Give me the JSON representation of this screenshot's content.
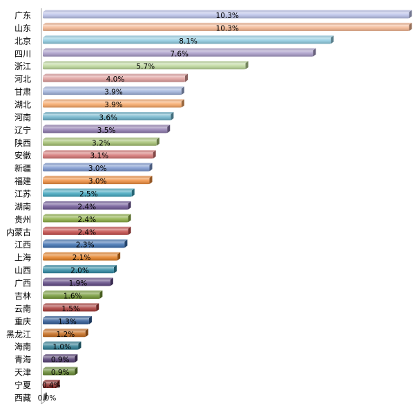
{
  "chart_data": {
    "type": "bar",
    "orientation": "horizontal",
    "style": "3d-cylinder",
    "categories": [
      "广东",
      "山东",
      "北京",
      "四川",
      "浙江",
      "河北",
      "甘肃",
      "湖北",
      "河南",
      "辽宁",
      "陕西",
      "安徽",
      "新疆",
      "福建",
      "江苏",
      "湖南",
      "贵州",
      "内蒙古",
      "江西",
      "上海",
      "山西",
      "广西",
      "吉林",
      "云南",
      "重庆",
      "黑龙江",
      "海南",
      "青海",
      "天津",
      "宁夏",
      "西藏"
    ],
    "values": [
      10.3,
      10.3,
      8.1,
      7.6,
      5.7,
      4.0,
      3.9,
      3.9,
      3.6,
      3.5,
      3.2,
      3.1,
      3.0,
      3.0,
      2.5,
      2.4,
      2.4,
      2.4,
      2.3,
      2.1,
      2.0,
      1.9,
      1.6,
      1.5,
      1.3,
      1.2,
      1.0,
      0.9,
      0.9,
      0.4,
      0.0
    ],
    "value_labels": [
      "10.3%",
      "10.3%",
      "8.1%",
      "7.6%",
      "5.7%",
      "4.0%",
      "3.9%",
      "3.9%",
      "3.6%",
      "3.5%",
      "3.2%",
      "3.1%",
      "3.0%",
      "3.0%",
      "2.5%",
      "2.4%",
      "2.4%",
      "2.4%",
      "2.3%",
      "2.1%",
      "2.0%",
      "1.9%",
      "1.6%",
      "1.5%",
      "1.3%",
      "1.2%",
      "1.0%",
      "0.9%",
      "0.9%",
      "0.4%",
      "0.0%"
    ],
    "colors": [
      "#b9c0e8",
      "#f3b48f",
      "#8ecbe0",
      "#a89bc8",
      "#bcd79a",
      "#de9c9a",
      "#9fb2db",
      "#f7a766",
      "#6db3cb",
      "#8f7bb0",
      "#a3c070",
      "#d57574",
      "#7b97cf",
      "#f08e3e",
      "#3fa5be",
      "#6e5796",
      "#8cae44",
      "#c44a48",
      "#3c6fb0",
      "#e57f22",
      "#2f8aa4",
      "#5e4783",
      "#759a37",
      "#aa3b38",
      "#2f5a96",
      "#c76b1c",
      "#2a7a90",
      "#533d73",
      "#668a32",
      "#922f2c",
      "#9a9a9a"
    ],
    "title": "",
    "xlabel": "",
    "ylabel": "",
    "xlim": [
      0,
      10.5
    ],
    "grid": false,
    "legend": "none"
  }
}
